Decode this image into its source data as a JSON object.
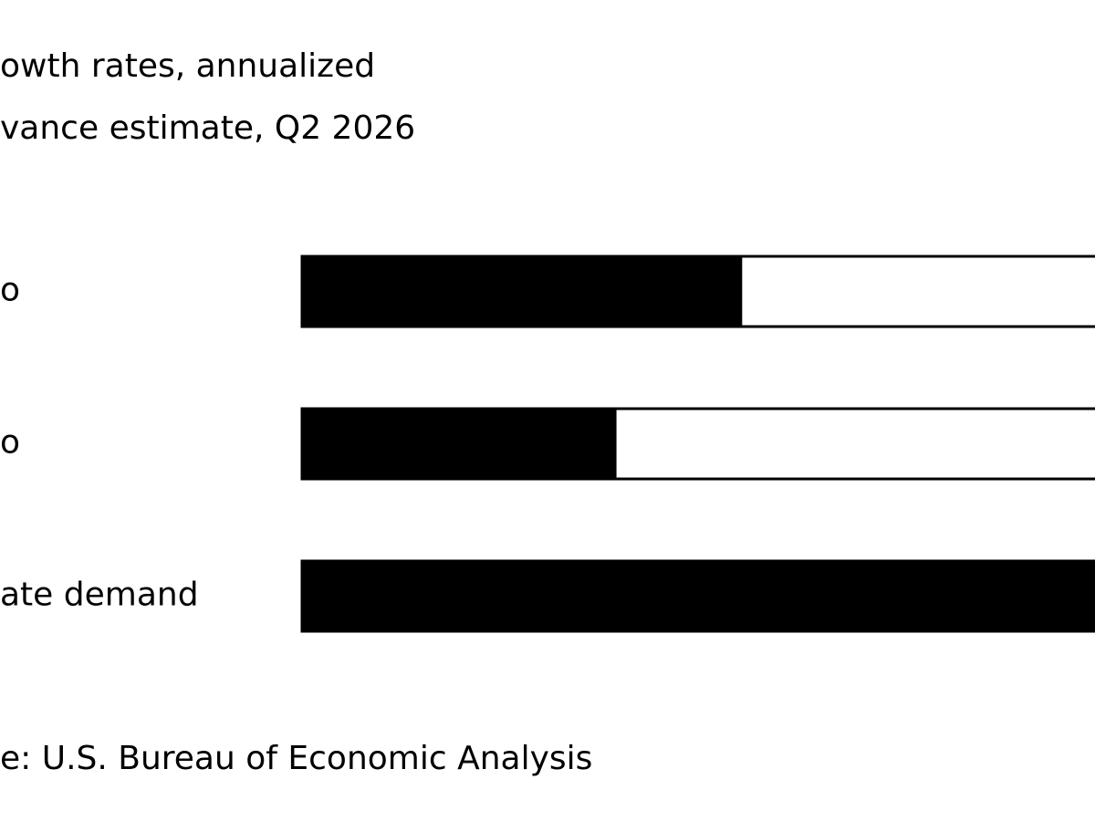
{
  "chart_data": {
    "type": "hbar",
    "title": "owth rates, annualized",
    "subtitle": "vance estimate, Q2 2026",
    "categories": [
      "o",
      "o",
      "ate demand"
    ],
    "values": [
      2.0,
      1.43,
      3.6
    ],
    "color": "#000000",
    "xlim": [
      0,
      3.6
    ],
    "source": "e: U.S. Bureau of Economic Analysis"
  }
}
